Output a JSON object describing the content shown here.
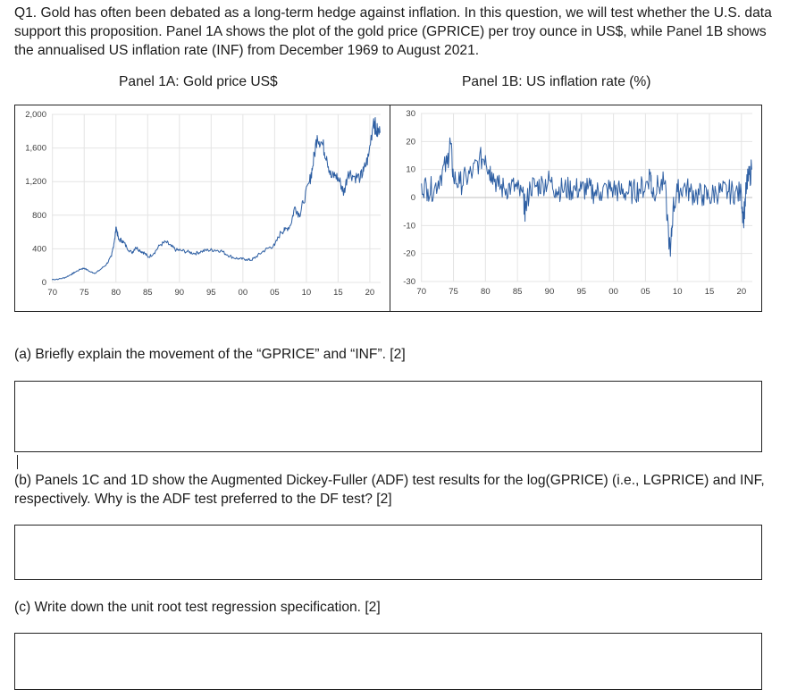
{
  "question": {
    "intro": "Q1. Gold has often been debated as a long-term hedge against inflation. In this question, we will test whether the U.S. data support this proposition. Panel 1A shows the plot of the gold price (GPRICE) per troy ounce in US$, while Panel 1B shows the annualised US inflation rate (INF) from December 1969 to August 2021."
  },
  "panels": {
    "a_title": "Panel 1A: Gold price US$",
    "b_title": "Panel 1B: US inflation rate (%)"
  },
  "chart_data": [
    {
      "type": "line",
      "title": "Panel 1A: Gold price US$",
      "xlabel": "",
      "ylabel": "",
      "x_ticks": [
        "70",
        "75",
        "80",
        "85",
        "90",
        "95",
        "00",
        "05",
        "10",
        "15",
        "20"
      ],
      "y_ticks": [
        "0",
        "400",
        "800",
        "1,200",
        "1,600",
        "2,000"
      ],
      "ylim": [
        0,
        2000
      ],
      "xlim": [
        1969.9,
        2021.7
      ],
      "grid": true,
      "line_color": "#2e5fa3",
      "series": [
        {
          "x": [
            1969.9,
            1971.0,
            1972.0,
            1973.0,
            1973.5,
            1974.5,
            1975.0,
            1976.0,
            1976.7,
            1977.5,
            1978.5,
            1979.3,
            1979.8,
            1980.05,
            1980.4,
            1981.0,
            1981.7,
            1982.5,
            1983.1,
            1983.8,
            1984.5,
            1985.1,
            1986.0,
            1987.0,
            1987.9,
            1988.7,
            1989.5,
            1990.3,
            1991.5,
            1992.5,
            1993.5,
            1994.5,
            1995.5,
            1996.5,
            1997.5,
            1998.5,
            1999.5,
            2000.5,
            2001.3,
            2002.0,
            2003.0,
            2004.0,
            2005.0,
            2006.0,
            2006.6,
            2007.5,
            2008.2,
            2008.9,
            2009.5,
            2010.5,
            2011.0,
            2011.7,
            2012.5,
            2013.2,
            2013.9,
            2014.6,
            2015.4,
            2015.9,
            2016.6,
            2017.5,
            2018.5,
            2019.0,
            2019.8,
            2020.6,
            2021.0,
            2021.6
          ],
          "y": [
            35,
            40,
            58,
            97,
            120,
            160,
            170,
            125,
            110,
            150,
            215,
            310,
            520,
            660,
            510,
            500,
            420,
            350,
            420,
            380,
            350,
            300,
            350,
            450,
            480,
            430,
            385,
            380,
            360,
            345,
            370,
            385,
            385,
            380,
            330,
            295,
            280,
            275,
            265,
            300,
            360,
            410,
            440,
            600,
            620,
            680,
            900,
            800,
            950,
            1200,
            1380,
            1750,
            1650,
            1500,
            1250,
            1280,
            1180,
            1060,
            1320,
            1260,
            1250,
            1320,
            1500,
            1950,
            1800,
            1780
          ]
        }
      ]
    },
    {
      "type": "line",
      "title": "Panel 1B: US inflation rate (%)",
      "xlabel": "",
      "ylabel": "",
      "x_ticks": [
        "70",
        "75",
        "80",
        "85",
        "90",
        "95",
        "00",
        "05",
        "10",
        "15",
        "20"
      ],
      "y_ticks": [
        "-30",
        "-20",
        "-10",
        "0",
        "10",
        "20",
        "30"
      ],
      "ylim": [
        -30,
        30
      ],
      "xlim": [
        1969.9,
        2021.7
      ],
      "grid": true,
      "line_color": "#2e5fa3",
      "series": [
        {
          "x": [
            1970,
            1971,
            1972,
            1973,
            1974,
            1974.5,
            1975,
            1976,
            1977,
            1978,
            1979,
            1980,
            1980.5,
            1981,
            1982,
            1983,
            1984,
            1985,
            1986,
            1986.2,
            1987,
            1988,
            1989,
            1990,
            1991,
            1992,
            1993,
            1994,
            1995,
            1996,
            1997,
            1998,
            1999,
            2000,
            2001,
            2002,
            2003,
            2004,
            2005,
            2005.8,
            2006,
            2007,
            2008,
            2008.9,
            2009.3,
            2010,
            2011,
            2012,
            2013,
            2014,
            2015,
            2016,
            2017,
            2018,
            2019,
            2020,
            2020.3,
            2020.8,
            2021,
            2021.6
          ],
          "y": [
            5,
            3,
            3,
            8,
            12,
            20,
            7,
            5,
            7,
            9,
            13,
            15,
            10,
            9,
            4,
            3,
            4,
            3,
            -1,
            -5,
            4,
            4,
            5,
            6,
            3,
            3,
            3,
            3,
            3,
            3,
            2,
            2,
            3,
            3,
            2,
            2,
            2,
            3,
            4,
            9,
            2,
            4,
            5,
            -21,
            -4,
            2,
            4,
            2,
            1,
            1,
            0,
            2,
            2,
            2,
            2,
            1,
            -8,
            4,
            6,
            10
          ]
        }
      ]
    }
  ],
  "parts": [
    {
      "text": "(a) Briefly explain the movement of the “GPRICE” and “INF”. [2]"
    },
    {
      "text": "(b) Panels 1C and 1D show the Augmented Dickey-Fuller (ADF) test results for the log(GPRICE) (i.e., LGPRICE) and INF, respectively. Why is the ADF test preferred to the DF test? [2]"
    },
    {
      "text": "(c) Write down the unit root test regression specification. [2]"
    }
  ]
}
